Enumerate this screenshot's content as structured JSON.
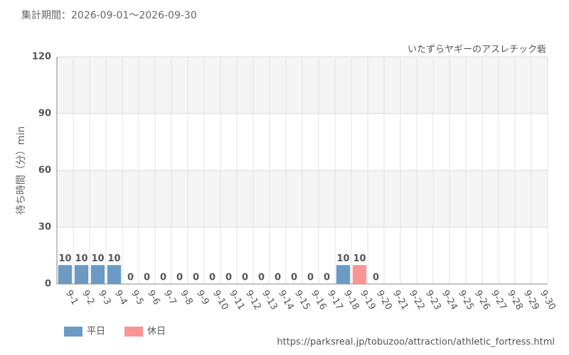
{
  "chart_data": {
    "type": "bar",
    "title": "集計期間：2026-09-01～2026-09-30",
    "subtitle": "いたずらヤギーのアスレチック砦",
    "y_label": "待ち時間（分）min",
    "source": "https://parksreal.jp/tobuzoo/attraction/athletic_fortress.html",
    "categories": [
      "9-1",
      "9-2",
      "9-3",
      "9-4",
      "9-5",
      "9-6",
      "9-7",
      "9-8",
      "9-9",
      "9-10",
      "9-11",
      "9-12",
      "9-13",
      "9-14",
      "9-15",
      "9-16",
      "9-17",
      "9-18",
      "9-19",
      "9-20",
      "9-21",
      "9-22",
      "9-23",
      "9-24",
      "9-25",
      "9-26",
      "9-27",
      "9-28",
      "9-29",
      "9-30"
    ],
    "category_colors": [
      "#555",
      "#555",
      "#555",
      "#555",
      "#f58b8b",
      "#f58b8b",
      "#555",
      "#555",
      "#555",
      "#555",
      "#555",
      "#f58b8b",
      "#f58b8b",
      "#555",
      "#555",
      "#555",
      "#555",
      "#555",
      "#f58b8b",
      "#f58b8b",
      "#f58b8b",
      "#f58b8b",
      "#f58b8b",
      "#555",
      "#555",
      "#f58b8b",
      "#f58b8b",
      "#555",
      "#555",
      "#555"
    ],
    "series": [
      {
        "name": "平日",
        "color": "#6b9ac4",
        "values": [
          10,
          10,
          10,
          10,
          null,
          null,
          0,
          0,
          0,
          0,
          0,
          null,
          null,
          0,
          0,
          0,
          0,
          10,
          null,
          null,
          null,
          null,
          null,
          null,
          null,
          null,
          null,
          null,
          null,
          null
        ]
      },
      {
        "name": "休日",
        "color": "#fb9494",
        "values": [
          null,
          null,
          null,
          null,
          0,
          0,
          null,
          null,
          null,
          null,
          null,
          0,
          0,
          null,
          null,
          null,
          null,
          null,
          10,
          0,
          null,
          null,
          null,
          null,
          null,
          null,
          null,
          null,
          null,
          null
        ]
      }
    ],
    "ylim": [
      0,
      120
    ],
    "yticks": [
      0,
      30,
      60,
      90,
      120
    ],
    "grid": true,
    "legend": "bottom-left"
  }
}
